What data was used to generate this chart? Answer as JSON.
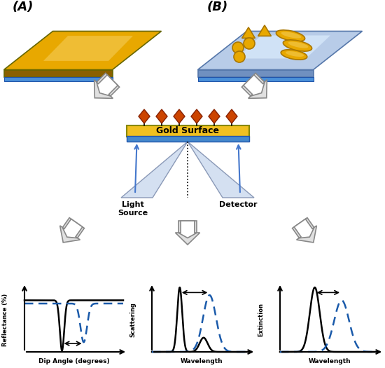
{
  "bg_color": "#ffffff",
  "label_A": "(A)",
  "label_B": "(B)",
  "gold_surface_text": "Gold Surface",
  "light_source_text": "Light\nSource",
  "detector_text": "Detector",
  "graph1_ylabel": "Reflectance (%)",
  "graph1_xlabel": "Dip Angle (degrees)",
  "graph2_ylabel": "Scattering",
  "graph2_xlabel": "Wavelength",
  "graph3_ylabel": "Extinction",
  "graph3_xlabel": "Wavelength",
  "line_color_solid": "#000000",
  "line_color_dash": "#1a5aaa",
  "gold_top": "#e8a800",
  "gold_light": "#f5d060",
  "gold_dark": "#a07000",
  "gold_side": "#8a6000",
  "blue_layer": "#4a90d9",
  "blue_plate": "#b8cce8",
  "blue_side": "#7090c0",
  "nanopart_color": "#e8a800",
  "nanopart_edge": "#aa7700",
  "diamond_color": "#cc4400",
  "diamond_edge": "#882200",
  "beam_color": "#d0ddf0",
  "beam_edge": "#8090b0",
  "arrow_fill": "#e0e0e0",
  "arrow_edge": "#888888",
  "bar_gold": "#f0c020",
  "bar_blue": "#4488cc"
}
